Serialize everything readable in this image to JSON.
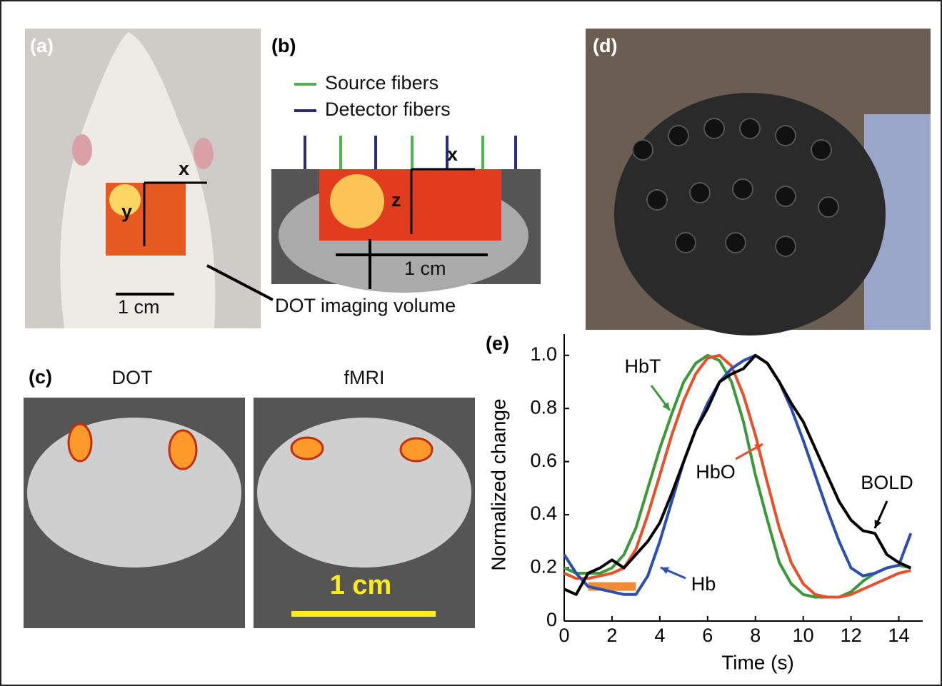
{
  "panels": {
    "a": {
      "label": "(a)",
      "x_axis": "x",
      "y_axis": "y",
      "scale_bar": "1 cm",
      "callout": "DOT imaging volume"
    },
    "b": {
      "label": "(b)",
      "legend": [
        "Source fibers",
        "Detector fibers"
      ],
      "x_axis": "x",
      "z_axis": "z",
      "scale_bar": "1 cm"
    },
    "c": {
      "label": "(c)",
      "titles": [
        "DOT",
        "fMRI"
      ],
      "scale_bar": "1 cm"
    },
    "d": {
      "label": "(d)"
    },
    "e": {
      "label": "(e)"
    }
  },
  "chart_data": {
    "type": "line",
    "xlabel": "Time (s)",
    "ylabel": "Normalized change",
    "x": [
      0,
      0.5,
      1,
      1.5,
      2,
      2.5,
      3,
      3.5,
      4,
      4.5,
      5,
      5.5,
      6,
      6.5,
      7,
      7.5,
      8,
      8.5,
      9,
      9.5,
      10,
      10.5,
      11,
      11.5,
      12,
      12.5,
      13,
      13.5,
      14,
      14.5
    ],
    "series": [
      {
        "name": "HbT",
        "color": "#3a9a3a",
        "values": [
          0.2,
          0.18,
          0.18,
          0.18,
          0.2,
          0.25,
          0.35,
          0.5,
          0.65,
          0.78,
          0.9,
          0.97,
          1.0,
          0.98,
          0.9,
          0.75,
          0.55,
          0.38,
          0.22,
          0.14,
          0.1,
          0.09,
          0.09,
          0.09,
          0.11,
          0.15,
          0.18,
          0.2,
          0.21,
          0.2
        ]
      },
      {
        "name": "HbO",
        "color": "#e8502a",
        "values": [
          0.18,
          0.16,
          0.16,
          0.17,
          0.18,
          0.2,
          0.27,
          0.4,
          0.55,
          0.7,
          0.83,
          0.93,
          0.99,
          1.0,
          0.96,
          0.85,
          0.7,
          0.52,
          0.35,
          0.22,
          0.14,
          0.1,
          0.09,
          0.09,
          0.1,
          0.12,
          0.14,
          0.16,
          0.18,
          0.19
        ]
      },
      {
        "name": "Hb",
        "color": "#2b4fb0",
        "values": [
          0.25,
          0.18,
          0.13,
          0.12,
          0.11,
          0.1,
          0.1,
          0.17,
          0.3,
          0.45,
          0.6,
          0.72,
          0.82,
          0.9,
          0.95,
          0.98,
          1.0,
          0.97,
          0.9,
          0.8,
          0.68,
          0.55,
          0.42,
          0.3,
          0.2,
          0.17,
          0.18,
          0.2,
          0.21,
          0.33
        ]
      },
      {
        "name": "BOLD",
        "color": "#000000",
        "values": [
          0.12,
          0.1,
          0.18,
          0.2,
          0.23,
          0.2,
          0.25,
          0.3,
          0.37,
          0.48,
          0.6,
          0.72,
          0.8,
          0.9,
          0.93,
          0.95,
          1.0,
          0.97,
          0.9,
          0.82,
          0.75,
          0.65,
          0.55,
          0.45,
          0.38,
          0.34,
          0.33,
          0.25,
          0.22,
          0.2
        ]
      }
    ],
    "stimulus": {
      "x": [
        1,
        3
      ],
      "y": 0.13,
      "color": "#f08020"
    },
    "xlim": [
      0,
      15
    ],
    "ylim": [
      0,
      1.08
    ],
    "xticks": [
      0,
      2,
      4,
      6,
      8,
      10,
      12,
      14
    ],
    "yticks": [
      0,
      0.2,
      0.4,
      0.6,
      0.8,
      {
        "value": 1,
        "label": "1.0"
      }
    ],
    "grid": false
  }
}
